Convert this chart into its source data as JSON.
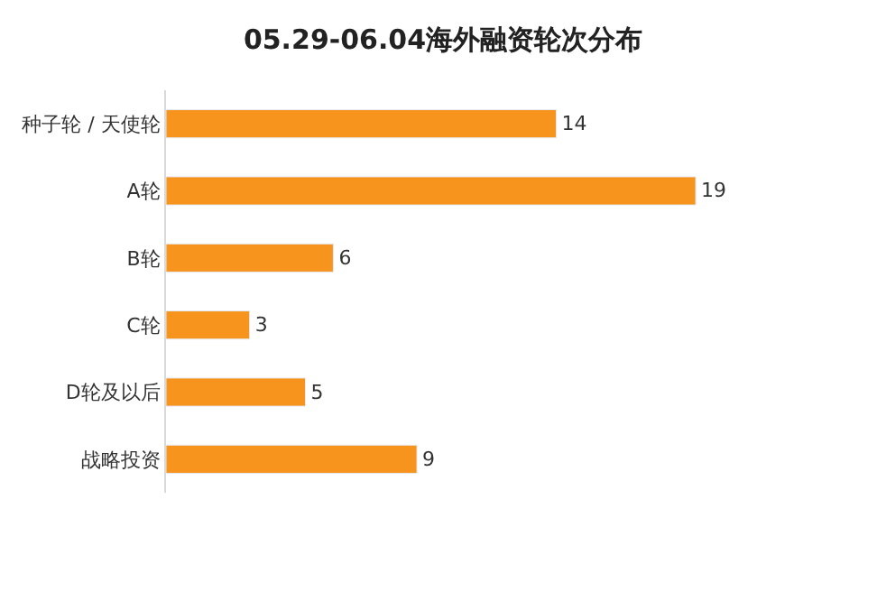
{
  "chart_data": {
    "type": "bar",
    "orientation": "horizontal",
    "title": "05.29-06.04海外融资轮次分布",
    "categories": [
      "种子轮 / 天使轮",
      "A轮",
      "B轮",
      "C轮",
      "D轮及以后",
      "战略投资"
    ],
    "values": [
      14,
      19,
      6,
      3,
      5,
      9
    ],
    "color": "#f7941d",
    "data_labels": true
  }
}
